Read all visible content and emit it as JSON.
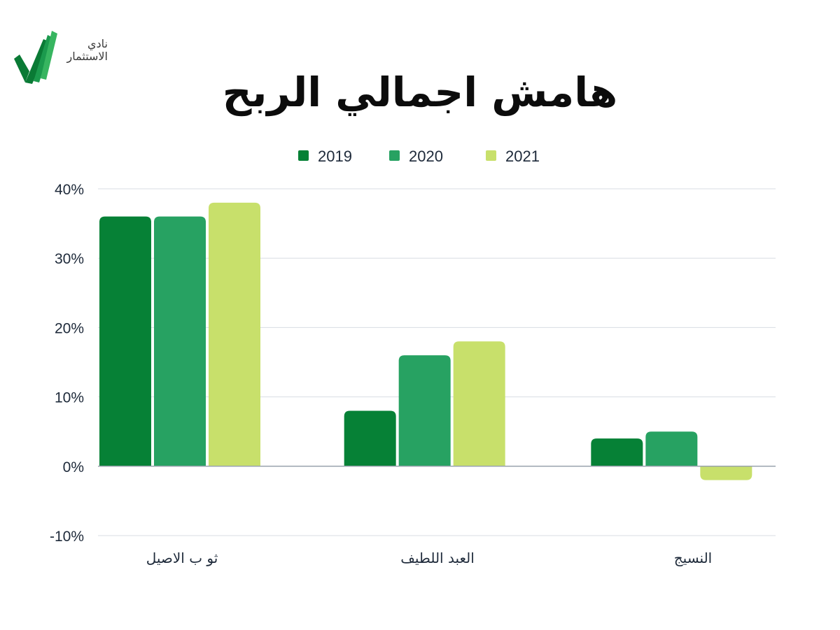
{
  "logo": {
    "text_line1": "نادي",
    "text_line2": "الاستثمار"
  },
  "chart_data": {
    "type": "bar",
    "title": "هامش اجمالي الربح",
    "categories": [
      "ثو ب الاصيل",
      "العبد اللطيف",
      "النسيج"
    ],
    "series": [
      {
        "name": "2019",
        "color": "#068136",
        "values": [
          36,
          8,
          4
        ]
      },
      {
        "name": "2020",
        "color": "#27a262",
        "values": [
          36,
          16,
          5
        ]
      },
      {
        "name": "2021",
        "color": "#c8e06b",
        "values": [
          38,
          18,
          -2
        ]
      }
    ],
    "ylim": [
      -10,
      40
    ],
    "yticks": [
      -10,
      0,
      10,
      20,
      30,
      40
    ],
    "ytick_labels": [
      "-10%",
      "0%",
      "10%",
      "20%",
      "30%",
      "40%"
    ],
    "xlabel": "",
    "ylabel": "",
    "grid": true,
    "legend_position": "top-center"
  }
}
